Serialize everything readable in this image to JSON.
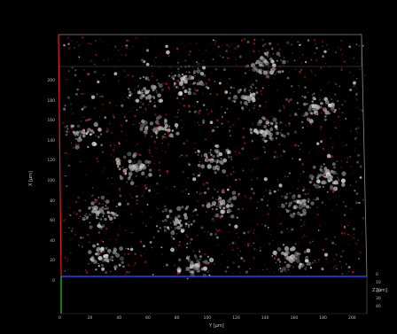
{
  "viewer": {
    "background_color": "#000000",
    "accent_colors": {
      "x_axis": "#e02020",
      "y_axis": "#2e3cff",
      "z_axis": "#20d020",
      "signal_grey": "#c8c8c8",
      "signal_red": "#c01818"
    },
    "axes": {
      "x": {
        "title": "X [µm]",
        "ticks": [
          "0",
          "20",
          "40",
          "60",
          "80",
          "100",
          "120",
          "140",
          "160",
          "180",
          "200"
        ]
      },
      "y": {
        "title": "Y [µm]",
        "ticks": [
          "0",
          "20",
          "40",
          "60",
          "80",
          "100",
          "120",
          "140",
          "160",
          "180",
          "200"
        ]
      },
      "z": {
        "title": "Z [µm]",
        "ticks": [
          "0",
          "10",
          "20",
          "30",
          "40"
        ]
      }
    }
  }
}
